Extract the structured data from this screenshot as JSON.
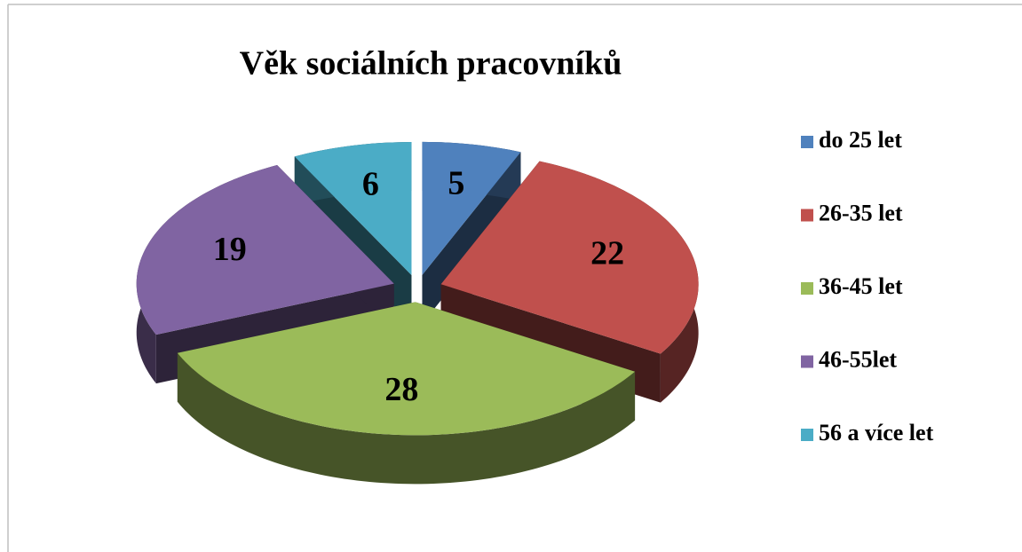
{
  "chart_data": {
    "type": "pie",
    "title": "Věk sociálních pracovníků",
    "categories": [
      "do 25 let",
      "26-35 let",
      "36-45 let",
      "46-55let",
      "56 a více let"
    ],
    "values": [
      5,
      22,
      28,
      19,
      6
    ],
    "colors": [
      "#4f81bd",
      "#c0504d",
      "#9bbb59",
      "#8064a2",
      "#4bacc6"
    ],
    "legend": "right"
  }
}
